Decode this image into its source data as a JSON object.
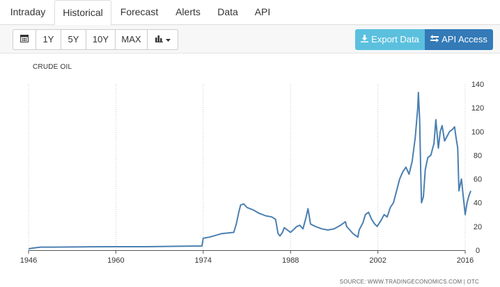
{
  "tabs": [
    "Intraday",
    "Historical",
    "Forecast",
    "Alerts",
    "Data",
    "API"
  ],
  "toolbar": {
    "buttons": [
      "1Y",
      "5Y",
      "10Y",
      "MAX"
    ],
    "export_label": "Export Data",
    "api_label": "API Access"
  },
  "icons": [
    "calendar-icon",
    "bar-chart-icon",
    "caret-down-icon",
    "download-icon",
    "exchange-icon"
  ],
  "colors": {
    "line": "#4a7fb0",
    "export": "#5bc0de",
    "api": "#337ab7"
  },
  "source": "SOURCE: WWW.TRADINGECONOMICS.COM | OTC",
  "chart_data": {
    "type": "line",
    "title": "CRUDE OIL",
    "xlabel": "",
    "ylabel": "",
    "xlim": [
      1946,
      2016
    ],
    "ylim": [
      0,
      140
    ],
    "xticks": [
      "1946",
      "1960",
      "1974",
      "1988",
      "2002",
      "2016"
    ],
    "yticks": [
      "0",
      "20",
      "40",
      "60",
      "80",
      "100",
      "120",
      "140"
    ],
    "grid": true,
    "series": [
      {
        "x": [
          1946,
          1947,
          1948,
          1950,
          1955,
          1960,
          1965,
          1970,
          1973.8,
          1974,
          1975,
          1976,
          1977,
          1978,
          1978.9,
          1979.3,
          1979.7,
          1980,
          1980.5,
          1981,
          1981.5,
          1982,
          1983,
          1984,
          1985,
          1985.6,
          1986,
          1986.3,
          1986.7,
          1987,
          1987.5,
          1988,
          1988.6,
          1989,
          1989.5,
          1990,
          1990.5,
          1990.8,
          1991.2,
          1991.6,
          1992,
          1993,
          1994,
          1995,
          1996,
          1996.8,
          1997,
          1998,
          1998.8,
          1999,
          1999.6,
          2000,
          2000.5,
          2001,
          2001.5,
          2001.9,
          2002,
          2002.5,
          2003,
          2003.5,
          2004,
          2004.5,
          2005,
          2005.5,
          2006,
          2006.5,
          2007,
          2007.5,
          2008,
          2008.4,
          2008.5,
          2008.7,
          2008.9,
          2009,
          2009.3,
          2009.6,
          2010,
          2010.5,
          2011,
          2011.3,
          2011.7,
          2012,
          2012.3,
          2012.7,
          2013,
          2013.5,
          2014,
          2014.3,
          2014.5,
          2014.8,
          2015,
          2015.4,
          2015.7,
          2016,
          2016.3,
          2016.6,
          2016.9
        ],
        "y": [
          1.2,
          2,
          2.6,
          2.6,
          2.8,
          2.9,
          2.9,
          3.3,
          3.5,
          10,
          11,
          12.5,
          14,
          14.5,
          15,
          22,
          32,
          38,
          39,
          36,
          35,
          34,
          31,
          29,
          28,
          26,
          14,
          12,
          15,
          19,
          17,
          15,
          18,
          20,
          21,
          18,
          28,
          35,
          22,
          21,
          20,
          18,
          17,
          18,
          21,
          24,
          20,
          14,
          11,
          17,
          23,
          30,
          32,
          26,
          22,
          20,
          21,
          25,
          30,
          28,
          36,
          40,
          50,
          60,
          66,
          70,
          64,
          75,
          95,
          120,
          133,
          110,
          60,
          40,
          45,
          68,
          78,
          80,
          90,
          110,
          86,
          100,
          105,
          92,
          95,
          100,
          102,
          104,
          96,
          86,
          50,
          60,
          45,
          30,
          40,
          46,
          50
        ]
      }
    ]
  }
}
